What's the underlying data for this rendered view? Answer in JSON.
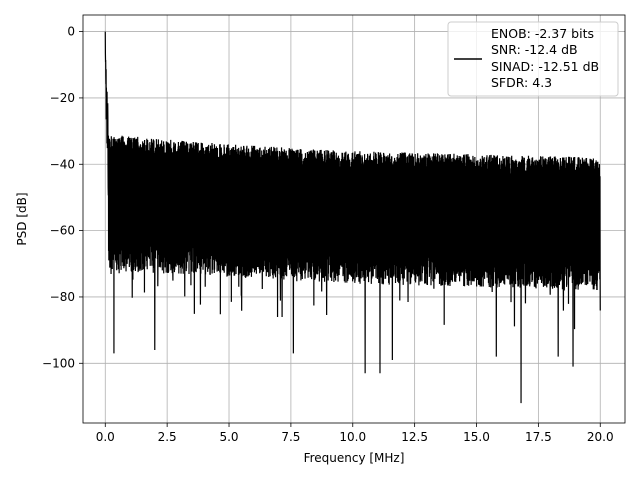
{
  "chart_data": {
    "type": "line",
    "title": "",
    "xlabel": "Frequency [MHz]",
    "ylabel": "PSD [dB]",
    "xlim": [
      -0.9,
      21.0
    ],
    "ylim": [
      -118,
      5
    ],
    "grid": true,
    "legend_position": "top-right",
    "x_ticks": [
      0.0,
      2.5,
      5.0,
      7.5,
      10.0,
      12.5,
      15.0,
      17.5,
      20.0
    ],
    "x_tick_labels": [
      "0.0",
      "2.5",
      "5.0",
      "7.5",
      "10.0",
      "12.5",
      "15.0",
      "17.5",
      "20.0"
    ],
    "y_ticks": [
      0,
      -20,
      -40,
      -60,
      -80,
      -100
    ],
    "y_tick_labels": [
      "0",
      "−20",
      "−40",
      "−60",
      "−80",
      "−100"
    ],
    "series": [
      {
        "legend_lines": [
          "ENOB: -2.37 bits",
          "SNR: -12.4 dB",
          "SINAD: -12.51 dB",
          "SFDR: 4.3"
        ],
        "color": "#000000",
        "x_range": [
          0.0,
          20.0
        ],
        "peak": {
          "x": 0.0,
          "y": 0.0
        },
        "noise_upper_envelope": [
          [
            0.15,
            -31
          ],
          [
            5.0,
            -34
          ],
          [
            10.0,
            -36
          ],
          [
            15.0,
            -37
          ],
          [
            20.0,
            -38
          ]
        ],
        "noise_lower_typical": [
          [
            0.0,
            -72
          ],
          [
            10.0,
            -76
          ],
          [
            20.0,
            -78
          ]
        ],
        "notable_dips": [
          {
            "x": 0.35,
            "y": -97
          },
          {
            "x": 2.0,
            "y": -96
          },
          {
            "x": 7.6,
            "y": -97
          },
          {
            "x": 10.5,
            "y": -103
          },
          {
            "x": 11.1,
            "y": -103
          },
          {
            "x": 11.6,
            "y": -99
          },
          {
            "x": 15.8,
            "y": -98
          },
          {
            "x": 16.8,
            "y": -112
          },
          {
            "x": 18.3,
            "y": -98
          },
          {
            "x": 18.9,
            "y": -101
          }
        ]
      }
    ]
  }
}
